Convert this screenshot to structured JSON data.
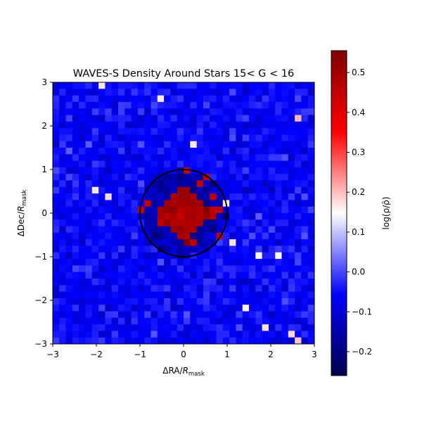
{
  "chart_data": {
    "type": "heatmap",
    "title": "WAVES-S Density Around Stars 15< G < 16",
    "xlabel": {
      "prefix": "ΔRA/",
      "var": "R",
      "sub": "mask"
    },
    "ylabel": {
      "prefix": "ΔDec/",
      "var": "R",
      "sub": "mask"
    },
    "xlim": [
      -3,
      3
    ],
    "ylim": [
      -3,
      3
    ],
    "xticks": [
      -3,
      -2,
      -1,
      0,
      1,
      2,
      3
    ],
    "yticks": [
      -3,
      -2,
      -1,
      0,
      1,
      2,
      3
    ],
    "xtick_labels": [
      "−3",
      "−2",
      "−1",
      "0",
      "1",
      "2",
      "3"
    ],
    "ytick_labels": [
      "−3",
      "−2",
      "−1",
      "0",
      "1",
      "2",
      "3"
    ],
    "grid": false,
    "grid_size": [
      40,
      40
    ],
    "cmap": "seismic",
    "colorbar": {
      "label": "log(ρ/ρ̄)",
      "vmin": -0.26,
      "vmax": 0.555,
      "ticks": [
        -0.2,
        -0.1,
        0.0,
        0.1,
        0.2,
        0.3,
        0.4,
        0.5
      ],
      "tick_labels": [
        "−0.2",
        "−0.1",
        "0.0",
        "0.1",
        "0.2",
        "0.3",
        "0.4",
        "0.5"
      ]
    },
    "field": {
      "background_mean": -0.06,
      "background_scatter": 0.05,
      "core_shape": "diamond",
      "core_half_width": 0.75,
      "core_value": 0.45,
      "core_edge_value": 0.53,
      "ring_value": -0.14
    },
    "circle": {
      "center": [
        0,
        0
      ],
      "radius": 1.0,
      "color": "#000000"
    }
  }
}
